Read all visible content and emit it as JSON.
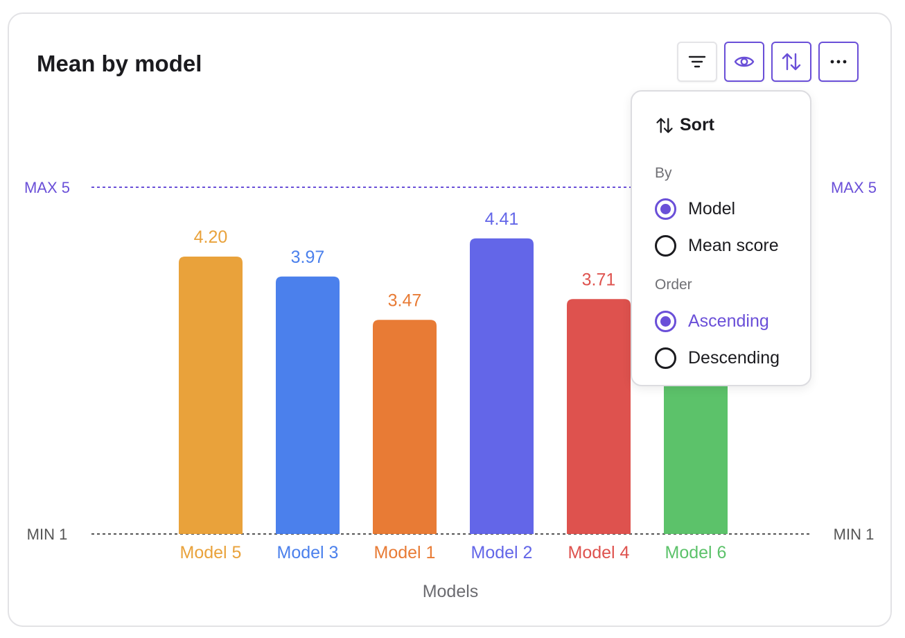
{
  "panel": {
    "title": "Mean by model"
  },
  "toolbar": {
    "buttons": [
      {
        "icon": "filter-icon",
        "state": "default"
      },
      {
        "icon": "eye-icon",
        "state": "active"
      },
      {
        "icon": "sort-icon",
        "state": "active"
      },
      {
        "icon": "more-icon",
        "state": "active"
      }
    ]
  },
  "sort_menu": {
    "title": "Sort",
    "by_label": "By",
    "by_options": [
      {
        "label": "Model",
        "selected": true
      },
      {
        "label": "Mean score",
        "selected": false
      }
    ],
    "order_label": "Order",
    "order_options": [
      {
        "label": "Ascending",
        "selected": true
      },
      {
        "label": "Descending",
        "selected": false
      }
    ]
  },
  "chart_data": {
    "type": "bar",
    "title": "Mean by model",
    "xlabel": "Models",
    "ylabel": "",
    "categories": [
      "Model 5",
      "Model 3",
      "Model 1",
      "Model 2",
      "Model 4",
      "Model 6"
    ],
    "values": [
      4.2,
      3.97,
      3.47,
      4.41,
      3.71,
      3.5
    ],
    "value_labels": [
      "4.20",
      "3.97",
      "3.47",
      "4.41",
      "3.71",
      ""
    ],
    "colors": [
      "#e9a23b",
      "#4b80ec",
      "#e87b35",
      "#6366e8",
      "#de524e",
      "#5cc26a"
    ],
    "ylim": [
      1,
      5
    ],
    "max_line_label": "MAX 5",
    "min_line_label": "MIN 1",
    "max_line_color": "#6a4fd8",
    "min_line_color": "#555555",
    "grid": false,
    "legend": "none"
  }
}
